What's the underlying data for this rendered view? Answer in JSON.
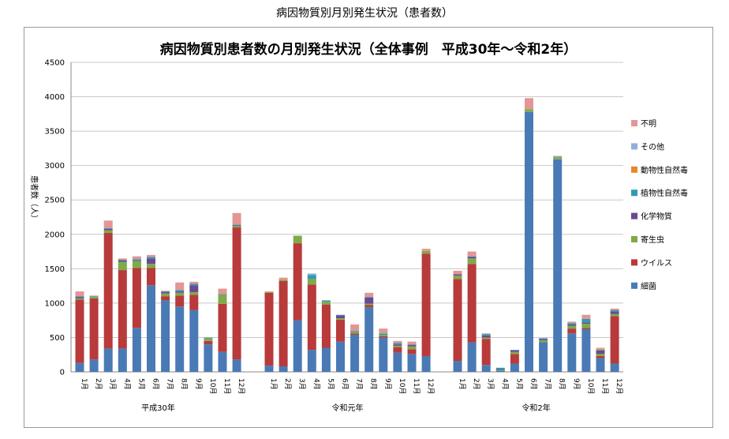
{
  "header": {
    "page_title": "病因物質別月別発生状況（患者数）"
  },
  "chart_data": {
    "type": "bar",
    "stacked": true,
    "title": "病因物質別患者数の月別発生状況（全体事例　平成30年～令和2年）",
    "ylabel": "患者数（人）",
    "ylim": [
      0,
      4500
    ],
    "yticks": [
      0,
      500,
      1000,
      1500,
      2000,
      2500,
      3000,
      3500,
      4000,
      4500
    ],
    "grid": true,
    "legend_position": "right",
    "groups": [
      {
        "label": "平成30年",
        "months": [
          "1月",
          "2月",
          "3月",
          "4月",
          "5月",
          "6月",
          "7月",
          "8月",
          "9月",
          "10月",
          "11月",
          "12月"
        ]
      },
      {
        "label": "令和元年",
        "months": [
          "1月",
          "2月",
          "3月",
          "4月",
          "5月",
          "6月",
          "7月",
          "8月",
          "9月",
          "10月",
          "11月",
          "12月"
        ]
      },
      {
        "label": "令和2年",
        "months": [
          "1月",
          "2月",
          "3月",
          "4月",
          "5月",
          "6月",
          "7月",
          "8月",
          "9月",
          "10月",
          "11月",
          "12月"
        ]
      }
    ],
    "series": [
      {
        "name": "細菌",
        "color": "#4a7ab5",
        "values": [
          [
            130,
            180,
            340,
            340,
            640,
            1260,
            1040,
            950,
            900,
            400,
            290,
            180
          ],
          [
            90,
            80,
            750,
            320,
            350,
            440,
            540,
            940,
            500,
            280,
            260,
            230
          ],
          [
            160,
            430,
            100,
            20,
            120,
            3780,
            430,
            3090,
            560,
            620,
            200,
            120
          ]
        ]
      },
      {
        "name": "ウイルス",
        "color": "#b83a3a",
        "values": [
          [
            920,
            890,
            1680,
            1140,
            870,
            250,
            60,
            160,
            220,
            50,
            700,
            1920
          ],
          [
            1060,
            1240,
            1120,
            950,
            630,
            320,
            20,
            30,
            20,
            80,
            70,
            1490
          ],
          [
            1190,
            1140,
            380,
            0,
            140,
            0,
            0,
            0,
            70,
            20,
            30,
            690
          ]
        ]
      },
      {
        "name": "寄生虫",
        "color": "#80aa48",
        "values": [
          [
            20,
            20,
            40,
            120,
            100,
            60,
            40,
            40,
            40,
            40,
            130,
            20
          ],
          [
            10,
            20,
            110,
            80,
            40,
            20,
            30,
            20,
            20,
            20,
            40,
            40
          ],
          [
            50,
            80,
            20,
            10,
            30,
            40,
            30,
            30,
            40,
            60,
            30,
            30
          ]
        ]
      },
      {
        "name": "化学物質",
        "color": "#6a4a90",
        "values": [
          [
            20,
            0,
            20,
            20,
            10,
            80,
            20,
            20,
            100,
            0,
            0,
            10
          ],
          [
            0,
            0,
            0,
            0,
            0,
            40,
            0,
            90,
            0,
            20,
            20,
            0
          ],
          [
            20,
            20,
            30,
            10,
            20,
            0,
            20,
            0,
            20,
            20,
            50,
            40
          ]
        ]
      },
      {
        "name": "植物性自然毒",
        "color": "#2e9bb3",
        "values": [
          [
            10,
            10,
            10,
            10,
            20,
            20,
            10,
            20,
            20,
            10,
            10,
            10
          ],
          [
            0,
            0,
            0,
            60,
            20,
            10,
            10,
            10,
            20,
            20,
            10,
            0
          ],
          [
            0,
            10,
            20,
            20,
            10,
            0,
            10,
            10,
            20,
            50,
            10,
            20
          ]
        ]
      },
      {
        "name": "動物性自然毒",
        "color": "#e6882e",
        "values": [
          [
            0,
            0,
            0,
            0,
            0,
            0,
            0,
            0,
            0,
            0,
            0,
            0
          ],
          [
            0,
            0,
            0,
            0,
            0,
            0,
            0,
            0,
            0,
            0,
            0,
            0
          ],
          [
            0,
            0,
            0,
            0,
            0,
            0,
            0,
            0,
            0,
            0,
            10,
            0
          ]
        ]
      },
      {
        "name": "その他",
        "color": "#8fb0d9",
        "values": [
          [
            0,
            0,
            0,
            0,
            0,
            0,
            0,
            0,
            0,
            0,
            0,
            0
          ],
          [
            0,
            0,
            0,
            20,
            0,
            0,
            0,
            0,
            0,
            0,
            0,
            0
          ],
          [
            0,
            0,
            0,
            0,
            0,
            0,
            0,
            0,
            0,
            0,
            0,
            0
          ]
        ]
      },
      {
        "name": "不明",
        "color": "#e49595",
        "values": [
          [
            70,
            10,
            110,
            20,
            40,
            30,
            10,
            110,
            30,
            0,
            80,
            170
          ],
          [
            10,
            30,
            0,
            0,
            0,
            0,
            90,
            60,
            70,
            30,
            40,
            30
          ],
          [
            50,
            70,
            10,
            0,
            0,
            160,
            0,
            10,
            20,
            60,
            20,
            20
          ]
        ]
      }
    ]
  }
}
